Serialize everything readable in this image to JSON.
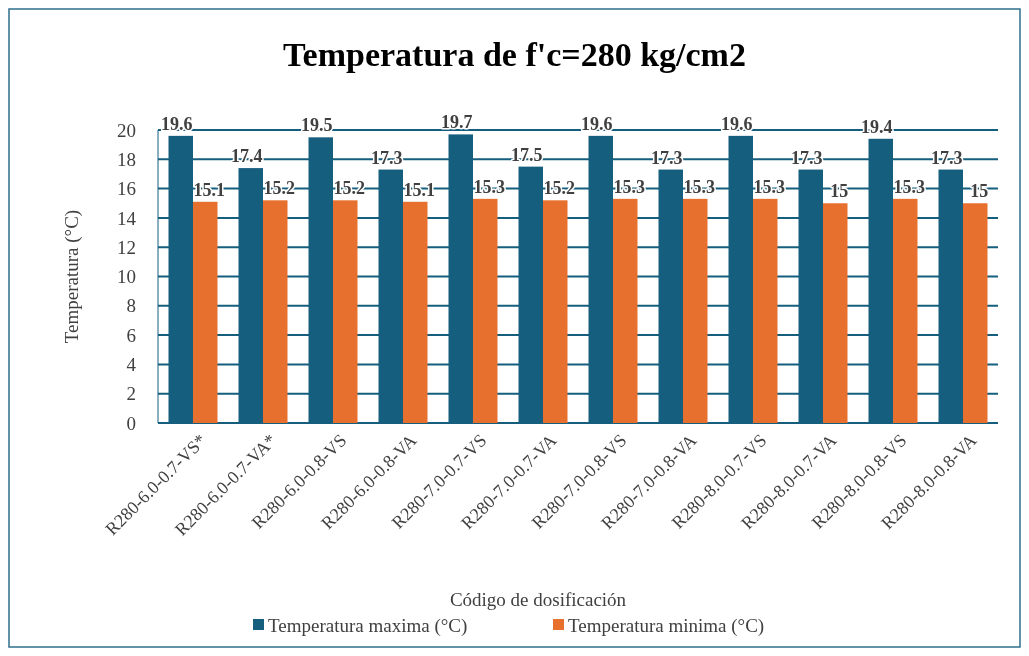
{
  "chart_data": {
    "type": "bar",
    "title": "Temperatura de  f'c=280 kg/cm2",
    "xlabel": "Código de dosificación",
    "ylabel": "Temperatura (°C)",
    "categories": [
      "R280-6.0-0.7-VS*",
      "R280-6.0-0.7-VA*",
      "R280-6.0-0.8-VS",
      "R280-6.0-0.8-VA",
      "R280-7.0-0.7-VS",
      "R280-7.0-0.7-VA",
      "R280-7.0-0.8-VS",
      "R280-7.0-0.8-VA",
      "R280-8.0-0.7-VS",
      "R280-8.0-0.7-VA",
      "R280-8.0-0.8-VS",
      "R280-8.0-0.8-VA"
    ],
    "series": [
      {
        "name": "Temperatura maxima (°C)",
        "color": "#155e7d",
        "values": [
          19.6,
          17.4,
          19.5,
          17.3,
          19.7,
          17.5,
          19.6,
          17.3,
          19.6,
          17.3,
          19.4,
          17.3
        ]
      },
      {
        "name": "Temperatura minima (°C)",
        "color": "#e8702f",
        "values": [
          15.1,
          15.2,
          15.2,
          15.1,
          15.3,
          15.2,
          15.3,
          15.3,
          15.3,
          15,
          15.3,
          15
        ]
      }
    ],
    "ylim": [
      0,
      20
    ],
    "yticks": [
      0,
      2,
      4,
      6,
      8,
      10,
      12,
      14,
      16,
      18,
      20
    ],
    "grid": "y",
    "legend": "bottom",
    "data_labels": true
  }
}
